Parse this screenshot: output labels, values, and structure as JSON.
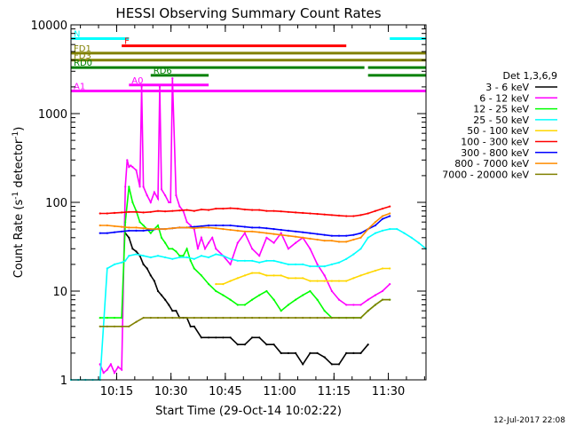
{
  "chart_data": {
    "type": "line",
    "title": "HESSI Observing Summary Count Rates",
    "xlabel": "Start Time (29-Oct-14 10:02:22)",
    "ylabel": "Count Rate (s⁻¹ detector⁻¹)",
    "ylabel_parts": {
      "main": "Count Rate (s",
      "sup1": "-1",
      "mid": " detector",
      "sup2": "-1",
      "end": ")"
    },
    "y_scale": "log",
    "ylim": [
      1,
      10000
    ],
    "xlim_minutes": [
      0,
      98
    ],
    "x_ticks": [
      {
        "label": "10:15",
        "min": 12.6
      },
      {
        "label": "10:30",
        "min": 27.6
      },
      {
        "label": "10:45",
        "min": 42.6
      },
      {
        "label": "11:00",
        "min": 57.6
      },
      {
        "label": "11:15",
        "min": 72.6
      },
      {
        "label": "11:30",
        "min": 87.6
      }
    ],
    "y_ticks": [
      {
        "label": "1",
        "v": 1
      },
      {
        "label": "10",
        "v": 10
      },
      {
        "label": "100",
        "v": 100
      },
      {
        "label": "1000",
        "v": 1000
      },
      {
        "label": "10000",
        "v": 10000
      }
    ],
    "legend": {
      "title": "Det 1,3,6,9",
      "position": "right",
      "items": [
        {
          "label": "3 - 6 keV",
          "color": "#000000"
        },
        {
          "label": "6 - 12 keV",
          "color": "#ff00ff"
        },
        {
          "label": "12 - 25 keV",
          "color": "#00ff00"
        },
        {
          "label": "25 - 50 keV",
          "color": "#00ffff"
        },
        {
          "label": "50 - 100 keV",
          "color": "#ffd700"
        },
        {
          "label": "100 - 300 keV",
          "color": "#ff0000"
        },
        {
          "label": "300 - 800 keV",
          "color": "#0000ff"
        },
        {
          "label": "800 - 7000 keV",
          "color": "#ff8c00"
        },
        {
          "label": "7000 - 20000 keV",
          "color": "#808000"
        }
      ]
    },
    "series": [
      {
        "name": "3 - 6 keV",
        "color": "#000000",
        "x": [
          15,
          16,
          17,
          18,
          19,
          20,
          21,
          22,
          23,
          24,
          25,
          26,
          27,
          28,
          29,
          30,
          31,
          32,
          33,
          34,
          36,
          38,
          40,
          42,
          44,
          46,
          48,
          50,
          52,
          54,
          56,
          58,
          60,
          62,
          64,
          66,
          68,
          70,
          72,
          74,
          76,
          78,
          80,
          82
        ],
        "y": [
          45,
          40,
          30,
          28,
          25,
          20,
          18,
          15,
          13,
          10,
          9,
          8,
          7,
          6,
          6,
          5,
          5,
          5,
          4,
          4,
          3,
          3,
          3,
          3,
          3,
          2.5,
          2.5,
          3,
          3,
          2.5,
          2.5,
          2,
          2,
          2,
          1.5,
          2,
          2,
          1.8,
          1.5,
          1.5,
          2,
          2,
          2,
          2.5
        ]
      },
      {
        "name": "6 - 12 keV",
        "color": "#ff00ff",
        "x": [
          8,
          9,
          10,
          11,
          12,
          13,
          14,
          15,
          15.5,
          16,
          16.5,
          17,
          18,
          19,
          19.5,
          20,
          21,
          22,
          23,
          24,
          24.5,
          25,
          26,
          27,
          27.5,
          28,
          29,
          30,
          31,
          32,
          33,
          34,
          35,
          36,
          37,
          38,
          39,
          40,
          42,
          44,
          46,
          48,
          50,
          52,
          54,
          56,
          58,
          60,
          62,
          64,
          66,
          68,
          70,
          72,
          74,
          76,
          78,
          80,
          82,
          84,
          86,
          88
        ],
        "y": [
          1.5,
          1.2,
          1.3,
          1.5,
          1.2,
          1.4,
          1.3,
          150,
          300,
          250,
          260,
          250,
          230,
          150,
          2000,
          150,
          120,
          100,
          130,
          110,
          2000,
          140,
          120,
          100,
          100,
          2500,
          120,
          90,
          80,
          60,
          55,
          50,
          30,
          40,
          30,
          35,
          40,
          30,
          25,
          20,
          35,
          45,
          30,
          25,
          40,
          35,
          45,
          30,
          35,
          40,
          30,
          20,
          15,
          10,
          8,
          7,
          7,
          7,
          8,
          9,
          10,
          12
        ]
      },
      {
        "name": "12 - 25 keV",
        "color": "#00ff00",
        "x": [
          8,
          10,
          12,
          14,
          15,
          16,
          17,
          18,
          19,
          20,
          21,
          22,
          23,
          24,
          25,
          26,
          27,
          28,
          29,
          30,
          31,
          32,
          33,
          34,
          36,
          38,
          40,
          42,
          44,
          46,
          48,
          50,
          52,
          54,
          56,
          58,
          60,
          62,
          64,
          66,
          68,
          70,
          72,
          74,
          76,
          78,
          80,
          82,
          84,
          86,
          88
        ],
        "y": [
          5,
          5,
          5,
          5,
          60,
          150,
          100,
          80,
          60,
          55,
          50,
          45,
          50,
          55,
          40,
          35,
          30,
          30,
          28,
          25,
          25,
          30,
          22,
          18,
          15,
          12,
          10,
          9,
          8,
          7,
          7,
          8,
          9,
          10,
          8,
          6,
          7,
          8,
          9,
          10,
          8,
          6,
          5,
          5,
          5,
          5,
          5,
          6,
          7,
          8,
          8
        ]
      },
      {
        "name": "25 - 50 keV",
        "color": "#00ffff",
        "x": [
          0,
          2,
          4,
          6,
          8,
          10,
          12,
          14,
          15,
          16,
          18,
          20,
          22,
          24,
          26,
          28,
          30,
          32,
          34,
          36,
          38,
          40,
          42,
          44,
          46,
          48,
          50,
          52,
          54,
          56,
          58,
          60,
          62,
          64,
          66,
          68,
          70,
          72,
          74,
          76,
          78,
          80,
          82,
          84,
          86,
          88,
          90,
          92,
          94,
          96,
          98
        ],
        "y": [
          1,
          1,
          1,
          1,
          1,
          18,
          20,
          21,
          22,
          25,
          26,
          25,
          24,
          25,
          24,
          23,
          24,
          24,
          23,
          25,
          24,
          26,
          25,
          23,
          22,
          22,
          22,
          21,
          22,
          22,
          21,
          20,
          20,
          20,
          19,
          19,
          19,
          20,
          21,
          23,
          26,
          30,
          40,
          45,
          48,
          50,
          50,
          45,
          40,
          35,
          30
        ]
      },
      {
        "name": "50 - 100 keV",
        "color": "#ffd700",
        "x": [
          40,
          42,
          44,
          46,
          48,
          50,
          52,
          54,
          56,
          58,
          60,
          62,
          64,
          66,
          68,
          70,
          72,
          74,
          76,
          78,
          80,
          82,
          84,
          86,
          88
        ],
        "y": [
          12,
          12,
          13,
          14,
          15,
          16,
          16,
          15,
          15,
          15,
          14,
          14,
          14,
          13,
          13,
          13,
          13,
          13,
          13,
          14,
          15,
          16,
          17,
          18,
          18
        ]
      },
      {
        "name": "100 - 300 keV",
        "color": "#ff0000",
        "x": [
          8,
          10,
          12,
          14,
          16,
          18,
          20,
          22,
          24,
          26,
          28,
          30,
          32,
          34,
          36,
          38,
          40,
          42,
          44,
          46,
          48,
          50,
          52,
          54,
          56,
          58,
          60,
          62,
          64,
          66,
          68,
          70,
          72,
          74,
          76,
          78,
          80,
          82,
          84,
          86,
          88
        ],
        "y": [
          75,
          75,
          76,
          77,
          78,
          78,
          77,
          78,
          80,
          79,
          80,
          81,
          82,
          80,
          83,
          82,
          85,
          85,
          86,
          85,
          83,
          82,
          82,
          80,
          80,
          79,
          78,
          77,
          76,
          75,
          74,
          73,
          72,
          71,
          70,
          70,
          72,
          75,
          80,
          85,
          90
        ]
      },
      {
        "name": "300 - 800 keV",
        "color": "#0000ff",
        "x": [
          8,
          10,
          12,
          14,
          16,
          18,
          20,
          22,
          24,
          26,
          28,
          30,
          32,
          34,
          36,
          38,
          40,
          42,
          44,
          46,
          48,
          50,
          52,
          54,
          56,
          58,
          60,
          62,
          64,
          66,
          68,
          70,
          72,
          74,
          76,
          78,
          80,
          82,
          84,
          86,
          88
        ],
        "y": [
          45,
          45,
          46,
          47,
          48,
          48,
          48,
          49,
          50,
          50,
          51,
          52,
          52,
          53,
          54,
          55,
          55,
          55,
          55,
          54,
          53,
          52,
          52,
          51,
          50,
          49,
          48,
          47,
          46,
          45,
          44,
          43,
          42,
          42,
          42,
          43,
          45,
          50,
          55,
          65,
          70
        ]
      },
      {
        "name": "800 - 7000 keV",
        "color": "#ff8c00",
        "x": [
          8,
          10,
          12,
          14,
          16,
          18,
          20,
          22,
          24,
          26,
          28,
          30,
          32,
          34,
          36,
          38,
          40,
          42,
          44,
          46,
          48,
          50,
          52,
          54,
          56,
          58,
          60,
          62,
          64,
          66,
          68,
          70,
          72,
          74,
          76,
          78,
          80,
          82,
          84,
          86,
          88
        ],
        "y": [
          55,
          55,
          54,
          53,
          52,
          52,
          51,
          50,
          50,
          50,
          51,
          52,
          52,
          51,
          52,
          52,
          51,
          50,
          49,
          48,
          47,
          47,
          46,
          45,
          44,
          43,
          42,
          41,
          40,
          39,
          38,
          37,
          37,
          36,
          36,
          38,
          40,
          50,
          60,
          70,
          75
        ]
      },
      {
        "name": "7000 - 20000 keV",
        "color": "#808000",
        "x": [
          8,
          10,
          12,
          14,
          16,
          18,
          20,
          22,
          24,
          26,
          28,
          30,
          32,
          34,
          36,
          38,
          40,
          42,
          44,
          46,
          48,
          50,
          52,
          54,
          56,
          58,
          60,
          62,
          64,
          66,
          68,
          70,
          72,
          74,
          76,
          78,
          80,
          82,
          84,
          86,
          88
        ],
        "y": [
          4,
          4,
          4,
          4,
          4,
          4.5,
          5,
          5,
          5,
          5,
          5,
          5,
          5,
          5,
          5,
          5,
          5,
          5,
          5,
          5,
          5,
          5,
          5,
          5,
          5,
          5,
          5,
          5,
          5,
          5,
          5,
          5,
          5,
          5,
          5,
          5,
          5,
          6,
          7,
          8,
          8
        ]
      }
    ],
    "flags": [
      {
        "name": "N",
        "color": "#00ffff",
        "y": 7000,
        "segments": [
          [
            0,
            16
          ],
          [
            88,
            98
          ]
        ]
      },
      {
        "name": "F",
        "color": "#ff0000",
        "y": 5800,
        "segments": [
          [
            14,
            76
          ]
        ]
      },
      {
        "name": "FD1",
        "color": "#808000",
        "y": 4800,
        "segments": [
          [
            0,
            98
          ]
        ]
      },
      {
        "name": "FD3",
        "color": "#808000",
        "y": 4000,
        "segments": [
          [
            0,
            98
          ]
        ]
      },
      {
        "name": "RD0",
        "color": "#008000",
        "y": 3300,
        "segments": [
          [
            0,
            81
          ],
          [
            82,
            98
          ]
        ]
      },
      {
        "name": "RD6",
        "color": "#008000",
        "y": 2700,
        "segments": [
          [
            22,
            38
          ],
          [
            82,
            98
          ]
        ]
      },
      {
        "name": "A0",
        "color": "#ff00ff",
        "y": 2100,
        "segments": [
          [
            16,
            38
          ]
        ]
      },
      {
        "name": "A1",
        "color": "#ff00ff",
        "y": 1800,
        "segments": [
          [
            0,
            98
          ]
        ]
      }
    ],
    "footer_date": "12-Jul-2017 22:08"
  }
}
